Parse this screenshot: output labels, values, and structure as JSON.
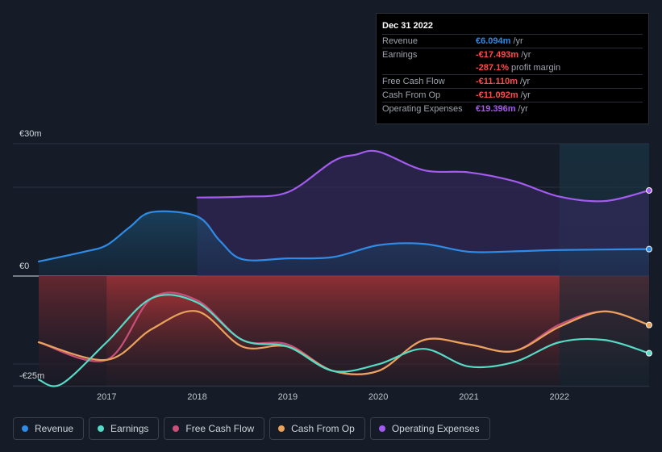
{
  "tooltip": {
    "date": "Dec 31 2022",
    "rows": [
      {
        "label": "Revenue",
        "value": "€6.094m",
        "unit": "/yr",
        "color": "#2f8be5"
      },
      {
        "label": "Earnings",
        "value": "-€17.493m",
        "unit": "/yr",
        "color": "#ff4a4a"
      },
      {
        "label": "",
        "value": "-287.1%",
        "unit": "profit margin",
        "color": "#ff4a4a"
      },
      {
        "label": "Free Cash Flow",
        "value": "-€11.110m",
        "unit": "/yr",
        "color": "#ff4a4a"
      },
      {
        "label": "Cash From Op",
        "value": "-€11.092m",
        "unit": "/yr",
        "color": "#ff4a4a"
      },
      {
        "label": "Operating Expenses",
        "value": "€19.396m",
        "unit": "/yr",
        "color": "#a35bf0"
      }
    ]
  },
  "chart_data": {
    "type": "area",
    "ylim": [
      -25,
      30
    ],
    "y_ticks": [
      {
        "value": 30,
        "label": "€30m"
      },
      {
        "value": 0,
        "label": "€0"
      },
      {
        "value": -25,
        "label": "-€25m"
      }
    ],
    "xlim": [
      2016.25,
      2022.99
    ],
    "x_ticks": [
      {
        "value": 2017,
        "label": "2017"
      },
      {
        "value": 2018,
        "label": "2018"
      },
      {
        "value": 2019,
        "label": "2019"
      },
      {
        "value": 2020,
        "label": "2020"
      },
      {
        "value": 2021,
        "label": "2021"
      },
      {
        "value": 2022,
        "label": "2022"
      }
    ],
    "forecast_start": 2022.0,
    "series": [
      {
        "name": "Operating Expenses",
        "color": "#a35bf0",
        "x": [
          2018.0,
          2018.5,
          2019.0,
          2019.5,
          2019.75,
          2020.0,
          2020.5,
          2021.0,
          2021.5,
          2022.0,
          2022.5,
          2022.99
        ],
        "y": [
          17.8,
          18.0,
          19.0,
          26.0,
          27.5,
          28.2,
          24.0,
          23.5,
          21.5,
          18.0,
          17.0,
          19.4
        ]
      },
      {
        "name": "Revenue",
        "color": "#2f8be5",
        "x": [
          2016.25,
          2016.75,
          2017.0,
          2017.25,
          2017.5,
          2018.0,
          2018.25,
          2018.5,
          2019.0,
          2019.5,
          2020.0,
          2020.5,
          2021.0,
          2021.5,
          2022.0,
          2022.99
        ],
        "y": [
          3.3,
          5.5,
          7.0,
          11.0,
          14.5,
          13.5,
          8.0,
          3.8,
          4.0,
          4.3,
          7.0,
          7.3,
          5.5,
          5.6,
          5.9,
          6.1
        ]
      },
      {
        "name": "Free Cash Flow",
        "color": "#c8507a",
        "x": [
          2016.25,
          2017.0,
          2017.5,
          2018.0,
          2018.5,
          2019.0,
          2019.5,
          2020.0,
          2020.5,
          2021.0,
          2021.5,
          2022.0,
          2022.5,
          2022.99
        ],
        "y": [
          -15.0,
          -19.0,
          -5.0,
          -5.5,
          -14.5,
          -15.5,
          -21.5,
          -21.5,
          -14.5,
          -15.5,
          -17.0,
          -11.0,
          -8.0,
          -11.1
        ]
      },
      {
        "name": "Cash From Op",
        "color": "#e9a35b",
        "x": [
          2016.25,
          2017.0,
          2017.5,
          2018.0,
          2018.5,
          2019.0,
          2019.5,
          2020.0,
          2020.5,
          2021.0,
          2021.5,
          2022.0,
          2022.5,
          2022.99
        ],
        "y": [
          -15.0,
          -19.0,
          -12.0,
          -8.0,
          -16.0,
          -16.0,
          -21.5,
          -21.5,
          -14.5,
          -15.5,
          -17.0,
          -11.5,
          -8.0,
          -11.1
        ]
      },
      {
        "name": "Earnings",
        "color": "#55dbc6",
        "x": [
          2016.25,
          2016.5,
          2017.0,
          2017.5,
          2018.0,
          2018.5,
          2019.0,
          2019.5,
          2020.0,
          2020.5,
          2021.0,
          2021.5,
          2022.0,
          2022.5,
          2022.99
        ],
        "y": [
          -23.5,
          -24.5,
          -15.0,
          -5.0,
          -6.0,
          -14.5,
          -16.0,
          -21.5,
          -20.0,
          -16.5,
          -20.5,
          -19.5,
          -15.0,
          -14.5,
          -17.5
        ]
      }
    ]
  },
  "legend": [
    {
      "label": "Revenue",
      "color": "#2f8be5"
    },
    {
      "label": "Earnings",
      "color": "#55dbc6"
    },
    {
      "label": "Free Cash Flow",
      "color": "#c8507a"
    },
    {
      "label": "Cash From Op",
      "color": "#e9a35b"
    },
    {
      "label": "Operating Expenses",
      "color": "#a35bf0"
    }
  ]
}
